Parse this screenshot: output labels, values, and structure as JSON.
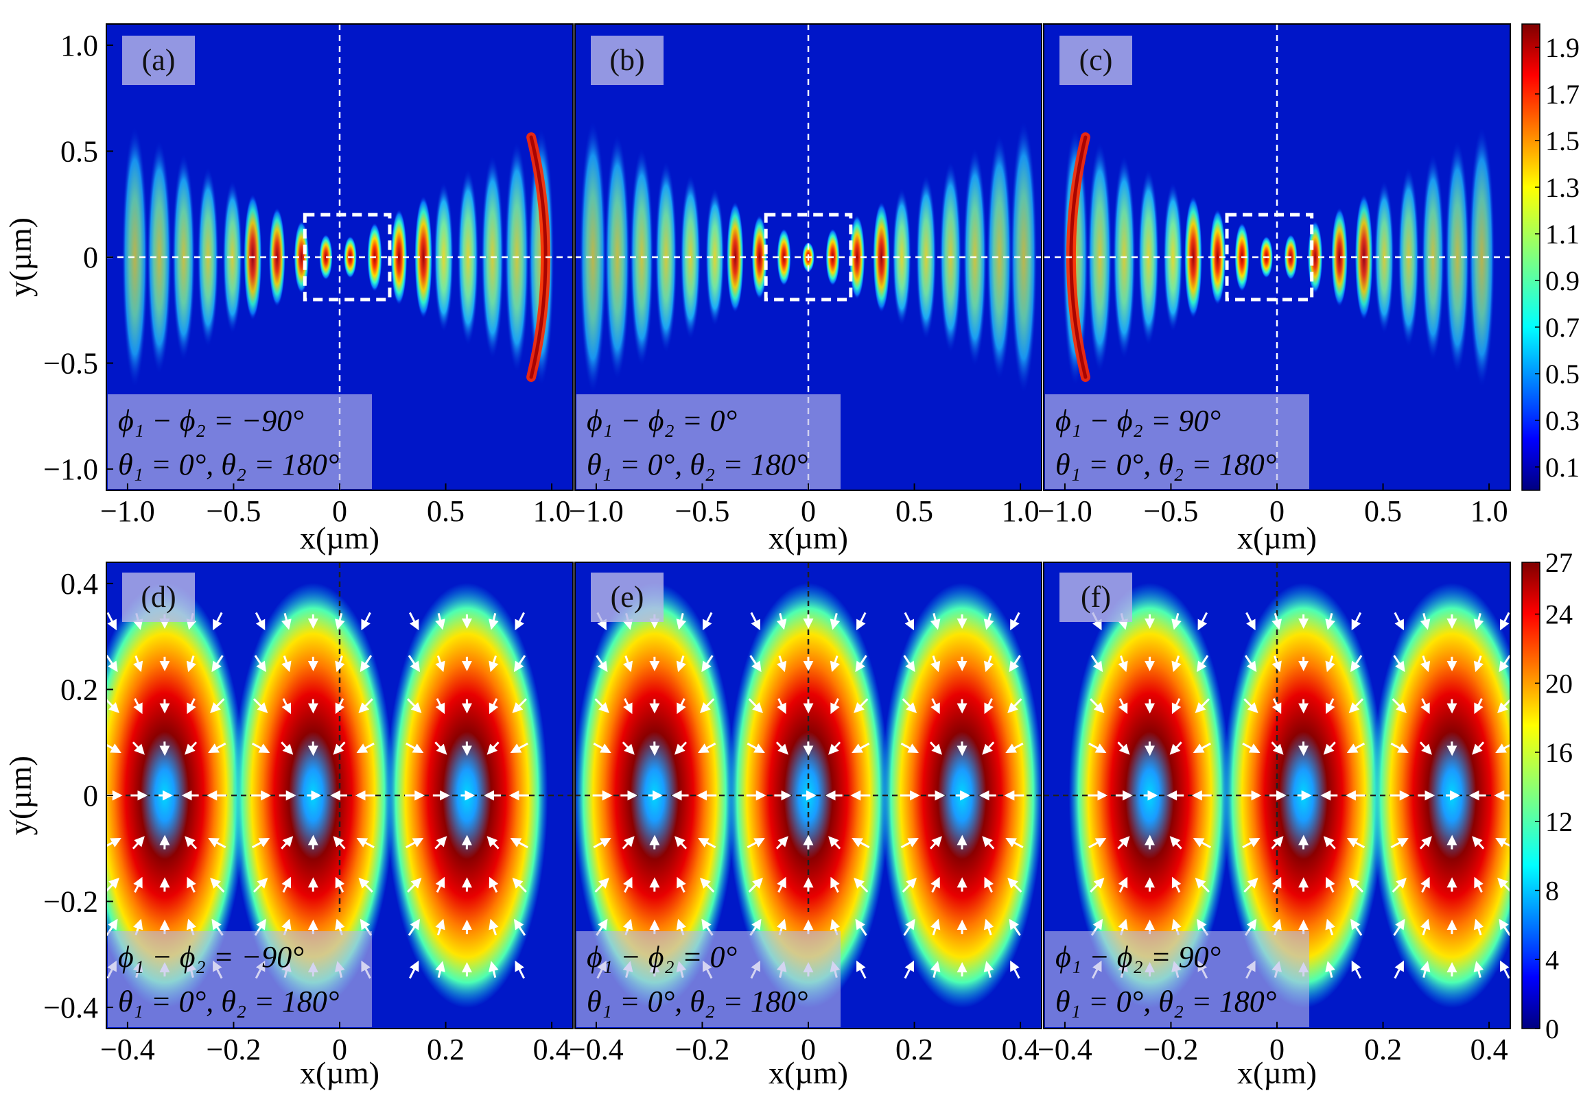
{
  "chart_data": [
    {
      "id": "top",
      "type": "heatmap",
      "xlabel": "x(µm)",
      "ylabel": "y(µm)",
      "xlim": [
        -1.1,
        1.1
      ],
      "ylim": [
        -1.1,
        1.1
      ],
      "xticks": [
        -1.0,
        -0.5,
        0,
        0.5,
        1.0
      ],
      "xtick_labels": [
        "−1.0",
        "−0.5",
        "0",
        "0.5",
        "1.0"
      ],
      "yticks": [
        1.0,
        0.5,
        0,
        -0.5,
        -1.0
      ],
      "ytick_labels": [
        "1.0",
        "0.5",
        "0",
        "−0.5",
        "−1.0"
      ],
      "colorbar": {
        "range": [
          0,
          2.0
        ],
        "ticks": [
          1.9,
          1.7,
          1.5,
          1.3,
          1.1,
          0.9,
          0.7,
          0.5,
          0.3,
          0.1
        ],
        "tick_labels": [
          "1.9",
          "1.7",
          "1.5",
          "1.3",
          "1.1",
          "0.9",
          "0.7",
          "0.5",
          "0.3",
          "0.1"
        ]
      },
      "highlight_box": {
        "x": [
          -0.2,
          0.2
        ],
        "y": [
          -0.2,
          0.2
        ]
      },
      "panels": [
        {
          "label": "(a)",
          "phase_line": "ϕ₁ − ϕ₂ = −90°",
          "angle_line": "θ₁ = 0°, θ₂ = 180°",
          "bright_side": "right",
          "center_offset": 0.12
        },
        {
          "label": "(b)",
          "phase_line": "ϕ₁ − ϕ₂ = 0°",
          "angle_line": "θ₁ = 0°, θ₂ = 180°",
          "bright_side": "both",
          "center_offset": 0.0
        },
        {
          "label": "(c)",
          "phase_line": "ϕ₁ − ϕ₂ = 90°",
          "angle_line": "θ₁ = 0°, θ₂ = 180°",
          "bright_side": "left",
          "center_offset": -0.12
        }
      ]
    },
    {
      "id": "bottom",
      "type": "heatmap",
      "xlabel": "x(µm)",
      "ylabel": "y(µm)",
      "xlim": [
        -0.44,
        0.44
      ],
      "ylim": [
        -0.44,
        0.44
      ],
      "xticks": [
        -0.4,
        -0.2,
        0,
        0.2,
        0.4
      ],
      "xtick_labels": [
        "−0.4",
        "−0.2",
        "0",
        "0.2",
        "0.4"
      ],
      "yticks": [
        0.4,
        0.2,
        0,
        -0.2,
        -0.4
      ],
      "ytick_labels": [
        "0.4",
        "0.2",
        "0",
        "−0.2",
        "−0.4"
      ],
      "colorbar": {
        "range": [
          0,
          27
        ],
        "ticks": [
          27,
          24,
          20,
          16,
          12,
          8,
          4,
          0
        ],
        "tick_labels": [
          "27",
          "24",
          "20",
          "16",
          "12",
          "8",
          "4",
          "0"
        ]
      },
      "overlay": "white arrows: field vectors",
      "panels": [
        {
          "label": "(d)",
          "phase_line": "ϕ₁ − ϕ₂ = −90°",
          "angle_line": "θ₁ = 0°, θ₂ = 180°",
          "lobe_centers": [
            -0.33,
            -0.05,
            0.24
          ]
        },
        {
          "label": "(e)",
          "phase_line": "ϕ₁ − ϕ₂ = 0°",
          "angle_line": "θ₁ = 0°, θ₂ = 180°",
          "lobe_centers": [
            -0.29,
            0.0,
            0.29
          ]
        },
        {
          "label": "(f)",
          "phase_line": "ϕ₁ − ϕ₂ = 90°",
          "angle_line": "θ₁ = 0°, θ₂ = 180°",
          "lobe_centers": [
            -0.24,
            0.05,
            0.33
          ]
        }
      ]
    }
  ]
}
